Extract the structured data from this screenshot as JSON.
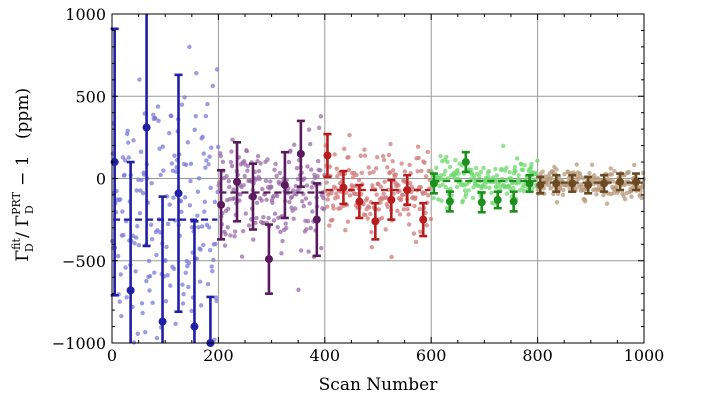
{
  "chart_data": {
    "type": "scatter",
    "title": "",
    "xlabel": "Scan Number",
    "ylabel_parts": {
      "gamma": "Γ",
      "sub": "D",
      "fit": "fit",
      "prt": "PRT",
      "tail": " − 1",
      "unit": "(ppm)"
    },
    "xlim": [
      0,
      1000
    ],
    "ylim": [
      -1000,
      1000
    ],
    "xticks": [
      0,
      200,
      400,
      600,
      800,
      1000
    ],
    "yticks": [
      -1000,
      -500,
      0,
      500,
      1000
    ],
    "ytick_labels": [
      "−1000",
      "−500",
      "0",
      "500",
      "1000"
    ],
    "grid": true,
    "series": [
      {
        "range": [
          0,
          200
        ],
        "color": "#1f1fa8",
        "scatter_color": "#7b7bd9",
        "mean": -250,
        "scatter_sd": 420,
        "binned": [
          {
            "x": 5,
            "y": 100,
            "err": 810
          },
          {
            "x": 35,
            "y": -680,
            "err": 780
          },
          {
            "x": 65,
            "y": 310,
            "err": 720
          },
          {
            "x": 95,
            "y": -870,
            "err": 760
          },
          {
            "x": 125,
            "y": -90,
            "err": 720
          },
          {
            "x": 155,
            "y": -900,
            "err": 640
          },
          {
            "x": 185,
            "y": -1000,
            "err": 280
          }
        ]
      },
      {
        "range": [
          200,
          400
        ],
        "color": "#5a1a5e",
        "scatter_color": "#9b6ba8",
        "mean": -85,
        "scatter_sd": 170,
        "binned": [
          {
            "x": 205,
            "y": -160,
            "err": 210
          },
          {
            "x": 235,
            "y": -20,
            "err": 240
          },
          {
            "x": 265,
            "y": -110,
            "err": 200
          },
          {
            "x": 295,
            "y": -490,
            "err": 210
          },
          {
            "x": 325,
            "y": -40,
            "err": 200
          },
          {
            "x": 355,
            "y": 150,
            "err": 200
          },
          {
            "x": 385,
            "y": -250,
            "err": 220
          }
        ]
      },
      {
        "range": [
          400,
          600
        ],
        "color": "#b81c1c",
        "scatter_color": "#cf7b7b",
        "mean": -70,
        "scatter_sd": 120,
        "binned": [
          {
            "x": 405,
            "y": 140,
            "err": 130
          },
          {
            "x": 435,
            "y": -55,
            "err": 100
          },
          {
            "x": 465,
            "y": -140,
            "err": 100
          },
          {
            "x": 495,
            "y": -260,
            "err": 110
          },
          {
            "x": 525,
            "y": -130,
            "err": 120
          },
          {
            "x": 555,
            "y": -70,
            "err": 90
          },
          {
            "x": 585,
            "y": -250,
            "err": 100
          }
        ]
      },
      {
        "range": [
          600,
          800
        ],
        "color": "#1d8f1d",
        "scatter_color": "#6fd86f",
        "mean": -15,
        "scatter_sd": 65,
        "binned": [
          {
            "x": 605,
            "y": -30,
            "err": 60
          },
          {
            "x": 635,
            "y": -140,
            "err": 60
          },
          {
            "x": 665,
            "y": 100,
            "err": 60
          },
          {
            "x": 695,
            "y": -145,
            "err": 60
          },
          {
            "x": 725,
            "y": -130,
            "err": 50
          },
          {
            "x": 755,
            "y": -140,
            "err": 60
          },
          {
            "x": 785,
            "y": -30,
            "err": 50
          }
        ]
      },
      {
        "range": [
          800,
          1000
        ],
        "color": "#6b4a22",
        "scatter_color": "#b89a7c",
        "mean": -25,
        "scatter_sd": 45,
        "binned": [
          {
            "x": 805,
            "y": -40,
            "err": 50
          },
          {
            "x": 835,
            "y": -30,
            "err": 50
          },
          {
            "x": 865,
            "y": -30,
            "err": 50
          },
          {
            "x": 895,
            "y": -40,
            "err": 50
          },
          {
            "x": 925,
            "y": -30,
            "err": 50
          },
          {
            "x": 955,
            "y": -20,
            "err": 50
          },
          {
            "x": 985,
            "y": -20,
            "err": 50
          }
        ]
      }
    ]
  }
}
